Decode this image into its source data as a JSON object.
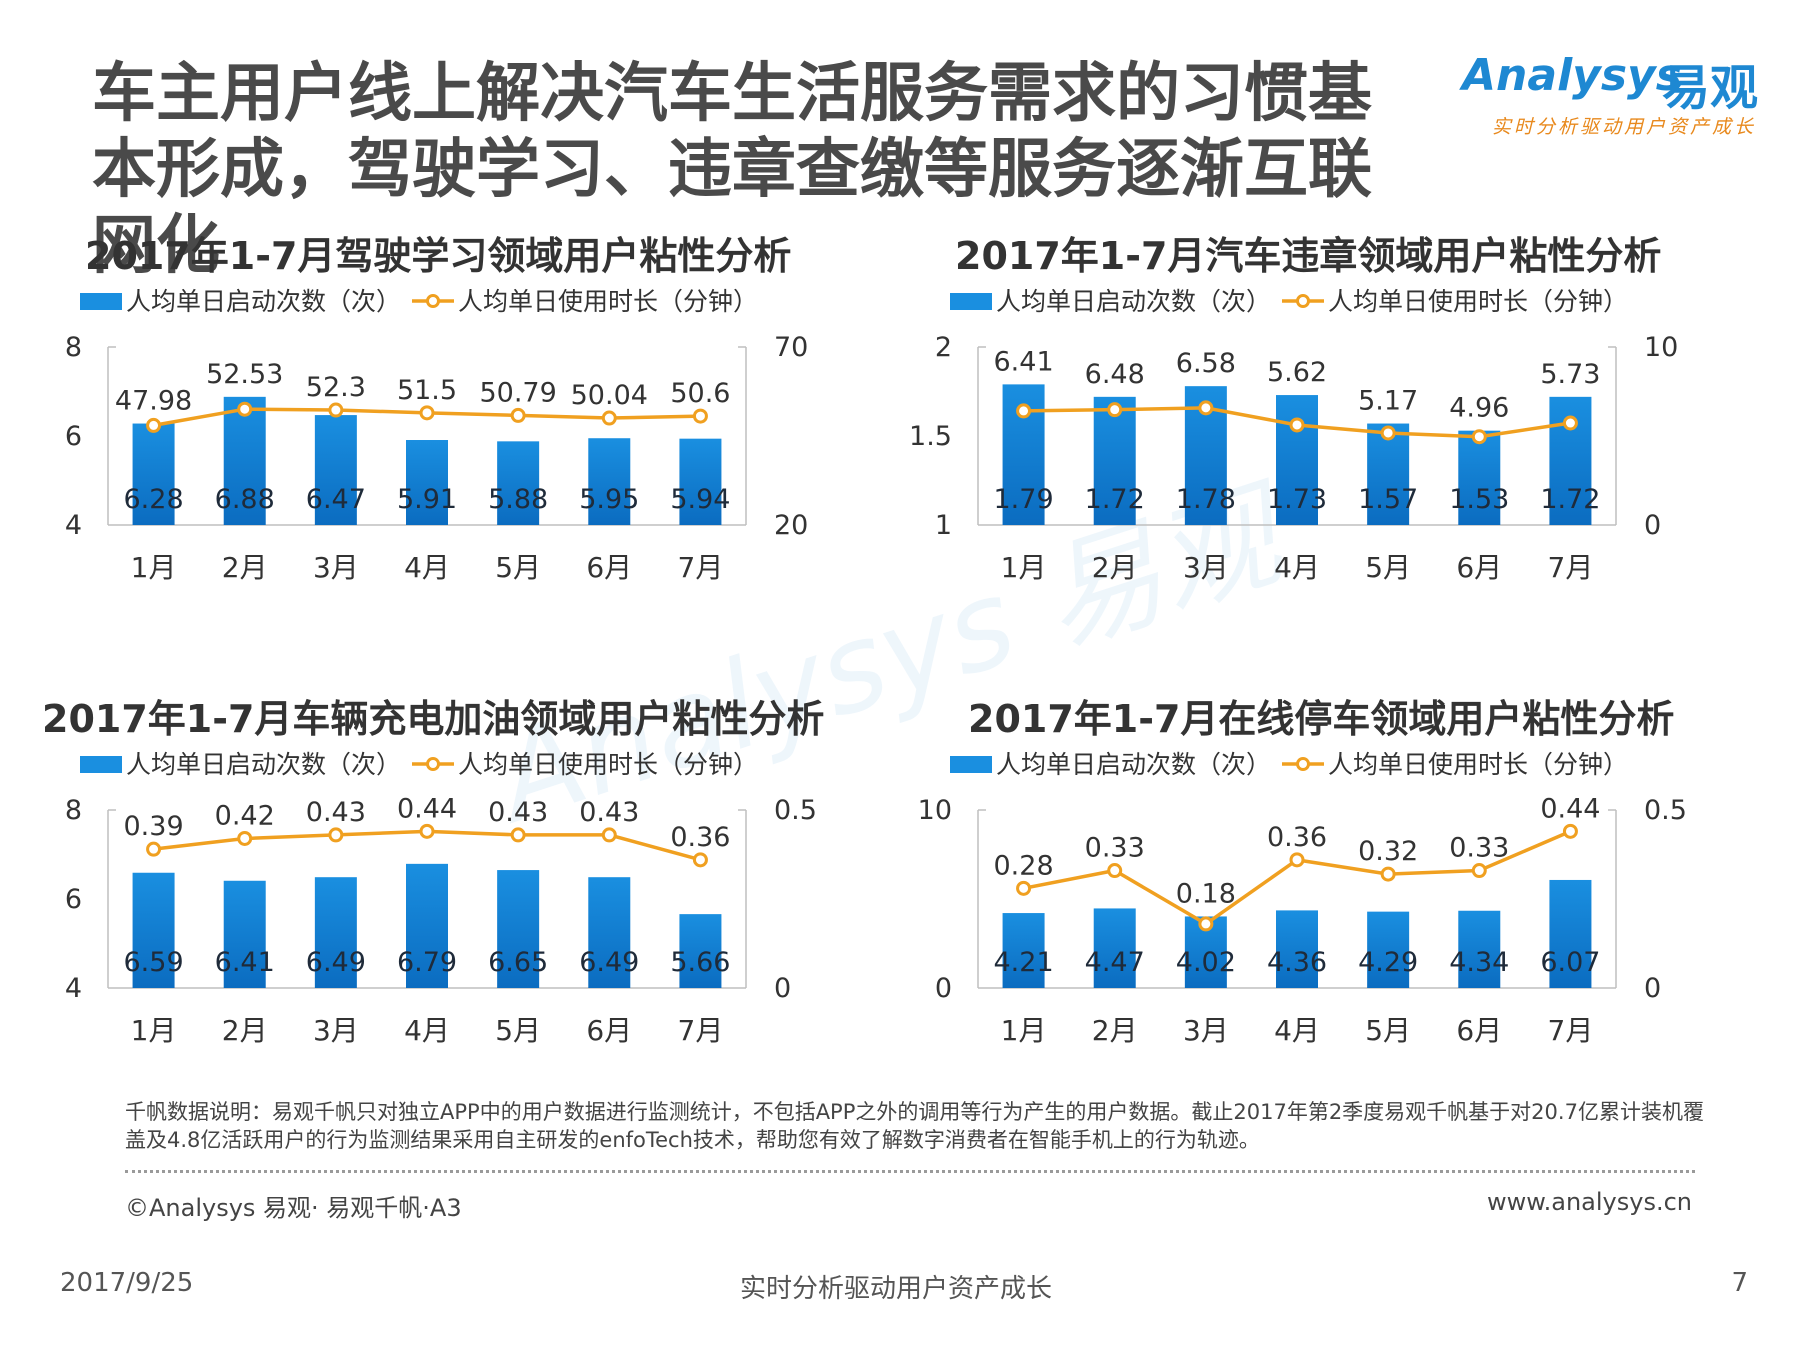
{
  "page": {
    "title": "车主用户线上解决汽车生活服务需求的习惯基本形成，驾驶学习、违章查缴等服务逐渐互联网化",
    "logo": {
      "name": "Analysys",
      "cn": "易观",
      "slogan": "实时分析驱动用户资产成长"
    },
    "footnote": "千帆数据说明：易观千帆只对独立APP中的用户数据进行监测统计，不包括APP之外的调用等行为产生的用户数据。截止2017年第2季度易观千帆基于对20.7亿累计装机覆盖及4.8亿活跃用户的行为监测结果采用自主研发的enfoTech技术，帮助您有效了解数字消费者在智能手机上的行为轨迹。",
    "copyright": "©Analysys 易观· 易观千帆·A3",
    "website": "www.analysys.cn",
    "date": "2017/9/25",
    "slogan_bottom": "实时分析驱动用户资产成长",
    "page_number": "7"
  },
  "colors": {
    "bar": "#1a8fe0",
    "bar_dark": "#0b6cc0",
    "line": "#f0a020",
    "axis": "#bfbfbf"
  },
  "chart_data": [
    {
      "type": "bar",
      "title": "2017年1-7月驾驶学习领域用户粘性分析",
      "categories": [
        "1月",
        "2月",
        "3月",
        "4月",
        "5月",
        "6月",
        "7月"
      ],
      "series": [
        {
          "name": "人均单日启动次数（次）",
          "type": "bar",
          "axis": "left",
          "values": [
            6.28,
            6.88,
            6.47,
            5.91,
            5.88,
            5.95,
            5.94
          ],
          "labels": [
            "6.28",
            "6.88",
            "6.47",
            "5.91",
            "5.88",
            "5.95",
            "5.94"
          ]
        },
        {
          "name": "人均单日使用时长（分钟）",
          "type": "line",
          "axis": "right",
          "values": [
            47.98,
            52.53,
            52.3,
            51.5,
            50.79,
            50.04,
            50.6
          ],
          "labels": [
            "47.98",
            "52.53",
            "52.3",
            "51.5",
            "50.79",
            "50.04",
            "50.6"
          ]
        }
      ],
      "y_left": {
        "min": 4,
        "max": 8,
        "ticks": [
          "4",
          "6",
          "8"
        ]
      },
      "y_right": {
        "min": 20,
        "max": 70,
        "ticks": [
          "20",
          "70"
        ]
      },
      "legend": "top"
    },
    {
      "type": "bar",
      "title": "2017年1-7月汽车违章领域用户粘性分析",
      "categories": [
        "1月",
        "2月",
        "3月",
        "4月",
        "5月",
        "6月",
        "7月"
      ],
      "series": [
        {
          "name": "人均单日启动次数（次）",
          "type": "bar",
          "axis": "left",
          "values": [
            1.79,
            1.72,
            1.78,
            1.73,
            1.57,
            1.53,
            1.72
          ],
          "labels": [
            "1.79",
            "1.72",
            "1.78",
            "1.73",
            "1.57",
            "1.53",
            "1.72"
          ]
        },
        {
          "name": "人均单日使用时长（分钟）",
          "type": "line",
          "axis": "right",
          "values": [
            6.41,
            6.48,
            6.58,
            5.62,
            5.17,
            4.96,
            5.73
          ],
          "labels": [
            "6.41",
            "6.48",
            "6.58",
            "5.62",
            "5.17",
            "4.96",
            "5.73"
          ]
        }
      ],
      "y_left": {
        "min": 1,
        "max": 2,
        "ticks": [
          "1",
          "1.5",
          "2"
        ]
      },
      "y_right": {
        "min": 0,
        "max": 10,
        "ticks": [
          "0",
          "10"
        ]
      },
      "legend": "top"
    },
    {
      "type": "bar",
      "title": "2017年1-7月车辆充电加油领域用户粘性分析",
      "categories": [
        "1月",
        "2月",
        "3月",
        "4月",
        "5月",
        "6月",
        "7月"
      ],
      "series": [
        {
          "name": "人均单日启动次数（次）",
          "type": "bar",
          "axis": "left",
          "values": [
            6.59,
            6.41,
            6.49,
            6.79,
            6.65,
            6.49,
            5.66
          ],
          "labels": [
            "6.59",
            "6.41",
            "6.49",
            "6.79",
            "6.65",
            "6.49",
            "5.66"
          ]
        },
        {
          "name": "人均单日使用时长（分钟）",
          "type": "line",
          "axis": "right",
          "values": [
            0.39,
            0.42,
            0.43,
            0.44,
            0.43,
            0.43,
            0.36
          ],
          "labels": [
            "0.39",
            "0.42",
            "0.43",
            "0.44",
            "0.43",
            "0.43",
            "0.36"
          ]
        }
      ],
      "y_left": {
        "min": 4,
        "max": 8,
        "ticks": [
          "4",
          "6",
          "8"
        ]
      },
      "y_right": {
        "min": 0,
        "max": 0.5,
        "ticks": [
          "0",
          "0.5"
        ]
      },
      "legend": "top"
    },
    {
      "type": "bar",
      "title": "2017年1-7月在线停车领域用户粘性分析",
      "categories": [
        "1月",
        "2月",
        "3月",
        "4月",
        "5月",
        "6月",
        "7月"
      ],
      "series": [
        {
          "name": "人均单日启动次数（次）",
          "type": "bar",
          "axis": "left",
          "values": [
            4.21,
            4.47,
            4.02,
            4.36,
            4.29,
            4.34,
            6.07
          ],
          "labels": [
            "4.21",
            "4.47",
            "4.02",
            "4.36",
            "4.29",
            "4.34",
            "6.07"
          ]
        },
        {
          "name": "人均单日使用时长（分钟）",
          "type": "line",
          "axis": "right",
          "values": [
            0.28,
            0.33,
            0.18,
            0.36,
            0.32,
            0.33,
            0.44
          ],
          "labels": [
            "0.28",
            "0.33",
            "0.18",
            "0.36",
            "0.32",
            "0.33",
            "0.44"
          ]
        }
      ],
      "y_left": {
        "min": 0,
        "max": 10,
        "ticks": [
          "0",
          "10"
        ]
      },
      "y_right": {
        "min": 0,
        "max": 0.5,
        "ticks": [
          "0",
          "0.5"
        ]
      },
      "legend": "top"
    }
  ]
}
